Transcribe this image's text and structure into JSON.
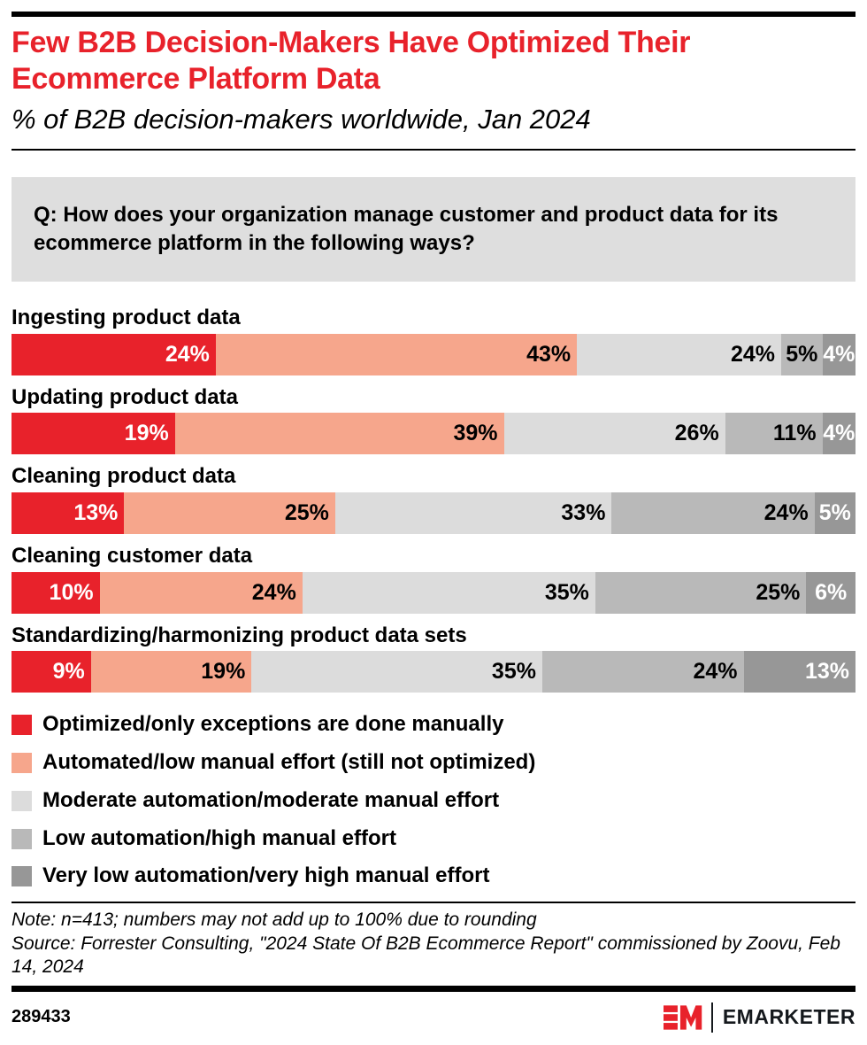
{
  "header": {
    "title": "Few B2B Decision-Makers Have Optimized Their Ecommerce Platform Data",
    "subtitle": "% of B2B decision-makers worldwide, Jan 2024"
  },
  "question": "Q: How does your organization manage customer and product data for its ecommerce platform in the following ways?",
  "chart_data": {
    "type": "bar",
    "subtype": "horizontal-stacked",
    "value_suffix": "%",
    "categories": [
      "Ingesting product data",
      "Updating product data",
      "Cleaning product data",
      "Cleaning customer data",
      "Standardizing/harmonizing product data sets"
    ],
    "series": [
      {
        "name": "Optimized/only exceptions are done manually",
        "color": "#e8222b",
        "text_color": "#ffffff",
        "values": [
          24,
          19,
          13,
          10,
          9
        ]
      },
      {
        "name": "Automated/low manual effort (still not optimized)",
        "color": "#f6a68c",
        "text_color": "#000000",
        "values": [
          43,
          39,
          25,
          24,
          19
        ]
      },
      {
        "name": "Moderate automation/moderate manual effort",
        "color": "#dcdcdc",
        "text_color": "#000000",
        "values": [
          24,
          26,
          33,
          35,
          35
        ]
      },
      {
        "name": "Low automation/high manual effort",
        "color": "#b9b9b9",
        "text_color": "#000000",
        "values": [
          5,
          11,
          24,
          25,
          24
        ]
      },
      {
        "name": "Very low automation/very high manual effort",
        "color": "#979797",
        "text_color": "#ffffff",
        "values": [
          4,
          4,
          5,
          6,
          13
        ]
      }
    ],
    "xlim": [
      0,
      100
    ],
    "legend_position": "bottom",
    "grid": false
  },
  "notes": {
    "note_line": "Note: n=413; numbers may not add up to 100% due to rounding",
    "source_line": "Source: Forrester Consulting, \"2024 State Of B2B Ecommerce Report\" commissioned by Zoovu, Feb 14, 2024"
  },
  "footer": {
    "chart_id": "289433",
    "brand": "EMARKETER"
  },
  "colors": {
    "accent_red": "#e8222b",
    "question_box_bg": "#dedede"
  }
}
